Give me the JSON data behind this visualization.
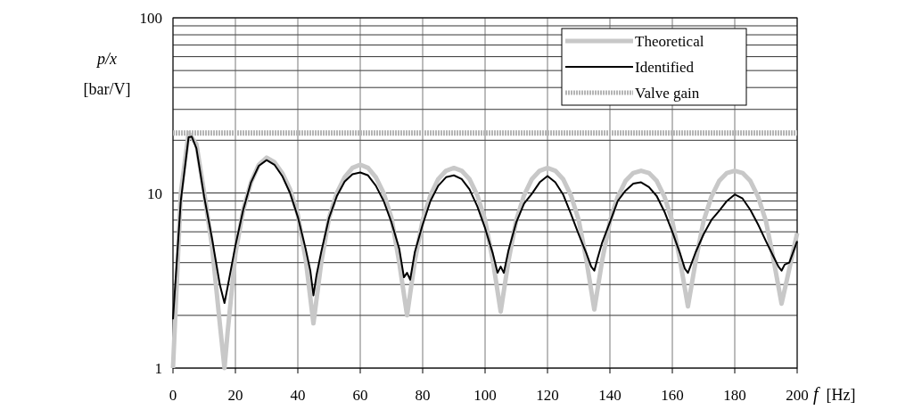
{
  "chart_data": {
    "type": "line",
    "xlabel": "f [Hz]",
    "ylabel": "p/x\n[bar/V]",
    "log": "y",
    "grid": true,
    "legend": "top right",
    "line_style": "solid",
    "xlim": [
      0,
      200
    ],
    "xticks": [
      0,
      20,
      40,
      60,
      80,
      100,
      120,
      140,
      160,
      180,
      200
    ],
    "ylim": [
      1,
      100
    ],
    "yticks": [
      1,
      {
        "value": 2,
        "label": null
      },
      {
        "value": 3,
        "label": null
      },
      {
        "value": 4,
        "label": null
      },
      {
        "value": 5,
        "label": null
      },
      {
        "value": 6,
        "label": null
      },
      {
        "value": 7,
        "label": null
      },
      {
        "value": 8,
        "label": null
      },
      {
        "value": 9,
        "label": null
      },
      10,
      {
        "value": 20,
        "label": null
      },
      {
        "value": 30,
        "label": null
      },
      {
        "value": 40,
        "label": null
      },
      {
        "value": 50,
        "label": null
      },
      {
        "value": 60,
        "label": null
      },
      {
        "value": 70,
        "label": null
      },
      {
        "value": 80,
        "label": null
      },
      {
        "value": 90,
        "label": null
      },
      100
    ],
    "series": [
      {
        "name": "Theoretical",
        "color": "#c8c8c8",
        "x": [
          0,
          2.5,
          5,
          7.5,
          10,
          12.5,
          15,
          16.5,
          17.5,
          20,
          22.5,
          25,
          27.5,
          30,
          32.5,
          35,
          37.5,
          40,
          42.5,
          45,
          47.5,
          50,
          52.5,
          55,
          57.5,
          60,
          62.5,
          65,
          67.5,
          70,
          72.5,
          75,
          77.5,
          80,
          82.5,
          85,
          87.5,
          90,
          92.5,
          95,
          97.5,
          100,
          102.5,
          105,
          107.5,
          110,
          112.5,
          115,
          117.5,
          120,
          122.5,
          125,
          127.5,
          130,
          132.5,
          135,
          137.5,
          140,
          142.5,
          145,
          147.5,
          150,
          152.5,
          155,
          157.5,
          160,
          162.5,
          165,
          167.5,
          170,
          172.5,
          175,
          177.5,
          180,
          182.5,
          185,
          187.5,
          190,
          192.5,
          195,
          197.5,
          200
        ],
        "values": [
          1.0,
          10,
          22,
          19,
          10,
          5,
          1.8,
          1.0,
          1.6,
          4.5,
          8,
          11.5,
          14.5,
          15.9,
          15,
          13,
          10.5,
          7.5,
          4.2,
          1.8,
          4.0,
          7.2,
          10,
          12.3,
          13.9,
          14.5,
          13.9,
          12.3,
          10,
          7.2,
          4.0,
          2.0,
          4.1,
          7.0,
          9.7,
          12,
          13.4,
          13.9,
          13.4,
          12,
          9.7,
          7.0,
          4.1,
          2.1,
          4.1,
          7.0,
          9.7,
          12,
          13.4,
          13.9,
          13.4,
          12,
          9.7,
          7.0,
          4.1,
          2.16,
          4.1,
          6.9,
          9.5,
          11.7,
          13,
          13.4,
          13,
          11.7,
          9.5,
          6.9,
          4.1,
          2.25,
          4.1,
          6.9,
          9.5,
          11.7,
          13,
          13.4,
          13,
          11.7,
          9.5,
          6.9,
          4.1,
          2.33,
          3.7,
          5.9
        ]
      },
      {
        "name": "Identified",
        "color": "#000000",
        "x": [
          0,
          2.5,
          5,
          6,
          7.5,
          10,
          12.5,
          15,
          16.5,
          17.5,
          20,
          22.5,
          25,
          27.5,
          30,
          32.5,
          35,
          37.5,
          40,
          42.5,
          44,
          45,
          46,
          47.5,
          50,
          52.5,
          55,
          57.5,
          60,
          62.5,
          65,
          67.5,
          70,
          72.5,
          74,
          75,
          76,
          77.5,
          80,
          82.5,
          85,
          87.5,
          90,
          92.5,
          95,
          97.5,
          100,
          102.5,
          104,
          105,
          106,
          107.5,
          110,
          112.5,
          115,
          117.5,
          120,
          122.5,
          125,
          127.5,
          130,
          132.5,
          134,
          135,
          136,
          137.5,
          140,
          142.5,
          145,
          147.5,
          150,
          152.5,
          155,
          157.5,
          160,
          162.5,
          164,
          165,
          166,
          167.5,
          170,
          172.5,
          175,
          177.5,
          180,
          182.5,
          185,
          187.5,
          190,
          192.5,
          194,
          195,
          196,
          197.5,
          200
        ],
        "values": [
          1.9,
          9,
          20.8,
          21,
          18,
          9.5,
          5.5,
          3,
          2.35,
          2.9,
          5,
          8,
          11.5,
          14.3,
          15.4,
          14.5,
          12.5,
          10,
          7.3,
          4.8,
          3.6,
          2.6,
          3.4,
          4.6,
          7.2,
          9.6,
          11.6,
          12.8,
          13.1,
          12.6,
          11,
          9,
          6.8,
          4.8,
          3.3,
          3.5,
          3.2,
          4.6,
          6.6,
          9,
          11,
          12.3,
          12.6,
          12,
          10.5,
          8.4,
          6.3,
          4.5,
          3.5,
          3.8,
          3.5,
          4.7,
          6.8,
          8.7,
          9.9,
          11.5,
          12.5,
          11.5,
          9.8,
          7.6,
          5.8,
          4.5,
          3.8,
          3.6,
          4.2,
          5.2,
          6.8,
          9,
          10.3,
          11.3,
          11.5,
          10.8,
          9.6,
          7.8,
          6,
          4.5,
          3.7,
          3.5,
          3.9,
          4.6,
          5.8,
          7,
          7.9,
          9,
          9.8,
          9.3,
          8,
          6.6,
          5.3,
          4.3,
          3.8,
          3.6,
          3.9,
          4,
          5.3
        ]
      },
      {
        "name": "Valve gain",
        "color": "#b4b4b4",
        "x": [
          0,
          200
        ],
        "values": [
          22,
          22
        ],
        "line_style": "dotted"
      }
    ]
  }
}
